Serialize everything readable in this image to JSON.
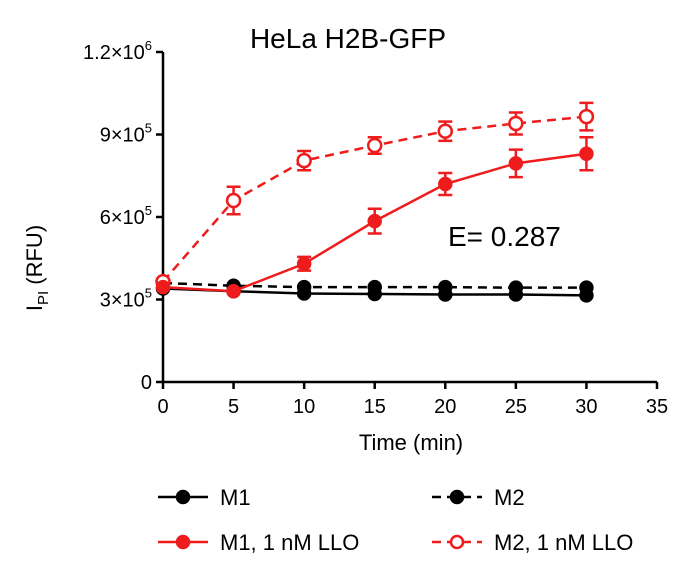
{
  "chart_data": {
    "type": "line",
    "title": "HeLa H2B-GFP",
    "annotation": "E= 0.287",
    "xlabel": "Time (min)",
    "ylabel_main": "I",
    "ylabel_sub": "PI",
    "ylabel_unit": " (RFU)",
    "xlim": [
      0,
      35
    ],
    "ylim": [
      0,
      1200000
    ],
    "x_ticks": [
      0,
      5,
      10,
      15,
      20,
      25,
      30,
      35
    ],
    "x_tick_labels": [
      "0",
      "5",
      "10",
      "15",
      "20",
      "25",
      "30",
      "35"
    ],
    "y_ticks": [
      {
        "value": 0,
        "mantissa": "0",
        "exponent": ""
      },
      {
        "value": 300000,
        "mantissa": "3×10",
        "exponent": "5"
      },
      {
        "value": 600000,
        "mantissa": "6×10",
        "exponent": "5"
      },
      {
        "value": 900000,
        "mantissa": "9×10",
        "exponent": "5"
      },
      {
        "value": 1200000,
        "mantissa": "1.2×10",
        "exponent": "6"
      }
    ],
    "grid": false,
    "legend_position": "bottom",
    "series": [
      {
        "name": "M1",
        "color": "#000000",
        "dashed": false,
        "marker_filled": true,
        "x": [
          0,
          5,
          10,
          15,
          20,
          25,
          30
        ],
        "y": [
          340000,
          330000,
          322000,
          320000,
          318000,
          318000,
          315000
        ],
        "err": [
          0,
          0,
          0,
          0,
          0,
          0,
          0
        ]
      },
      {
        "name": "M2",
        "color": "#000000",
        "dashed": true,
        "marker_filled": true,
        "x": [
          0,
          5,
          10,
          15,
          20,
          25,
          30
        ],
        "y": [
          360000,
          350000,
          345000,
          345000,
          345000,
          343000,
          343000
        ],
        "err": [
          0,
          0,
          0,
          0,
          0,
          0,
          0
        ]
      },
      {
        "name": "M1, 1 nM LLO",
        "color": "#ee1c1c",
        "dashed": false,
        "marker_filled": true,
        "x": [
          0,
          5,
          10,
          15,
          20,
          25,
          30
        ],
        "y": [
          345000,
          330000,
          430000,
          585000,
          720000,
          795000,
          830000
        ],
        "err": [
          0,
          0,
          25000,
          45000,
          40000,
          50000,
          60000
        ]
      },
      {
        "name": "M2, 1 nM LLO",
        "color": "#ee1c1c",
        "dashed": true,
        "marker_filled": false,
        "x": [
          0,
          5,
          10,
          15,
          20,
          25,
          30
        ],
        "y": [
          365000,
          660000,
          805000,
          860000,
          912000,
          940000,
          965000
        ],
        "err": [
          0,
          50000,
          35000,
          30000,
          35000,
          40000,
          50000
        ]
      }
    ]
  }
}
